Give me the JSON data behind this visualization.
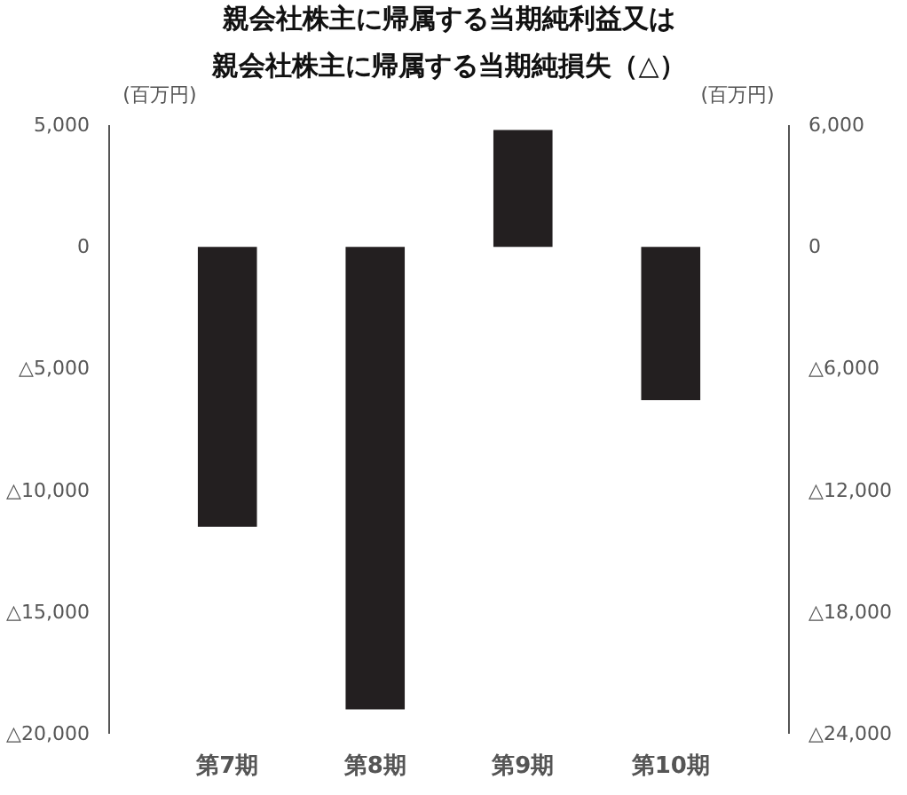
{
  "chart_data": {
    "type": "bar",
    "title": "親会社株主に帰属する当期純利益又は",
    "subtitle": "親会社株主に帰属する当期純損失（△）",
    "ylabel": "(百万円)",
    "y2label": "(百万円)",
    "categories": [
      "第7期",
      "第8期",
      "第9期",
      "第10期"
    ],
    "series": [
      {
        "color": "#231f20",
        "values": [
          -11500,
          -19000,
          4800,
          -6300
        ]
      }
    ],
    "ylim": [
      -20000,
      5000
    ],
    "yticks": [
      {
        "value": -20000,
        "label": "△20,000"
      },
      {
        "value": -15000,
        "label": "△15,000"
      },
      {
        "value": -10000,
        "label": "△10,000"
      },
      {
        "value": -5000,
        "label": "△5,000"
      },
      0,
      {
        "value": 5000,
        "label": "5,000"
      }
    ],
    "y2lim": [
      -24000,
      6000
    ],
    "y2ticks": [
      {
        "value": -24000,
        "label": "△24,000"
      },
      {
        "value": -18000,
        "label": "△18,000"
      },
      {
        "value": -12000,
        "label": "△12,000"
      },
      {
        "value": -6000,
        "label": "△6,000"
      },
      0,
      {
        "value": 6000,
        "label": "6,000"
      }
    ],
    "grid": false
  }
}
